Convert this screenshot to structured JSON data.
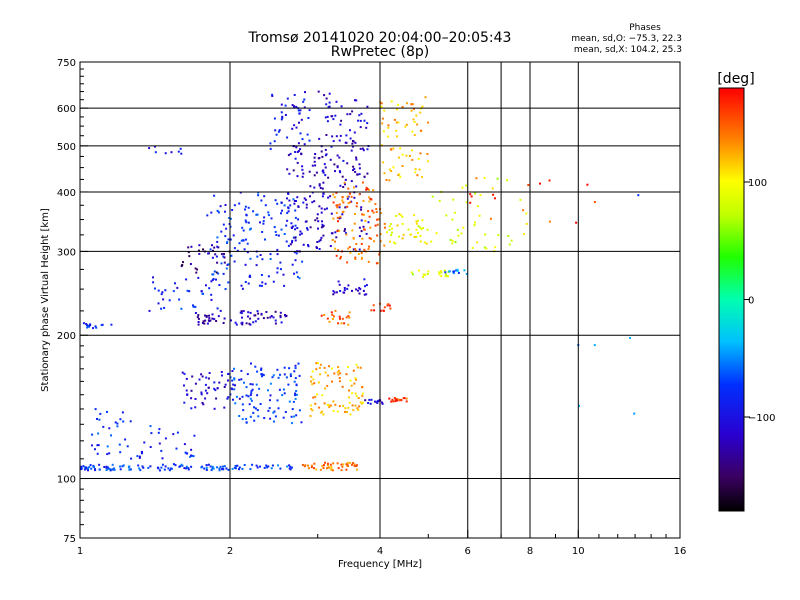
{
  "chart_data": {
    "type": "scatter",
    "title": "Tromsø 20141020 20:04:00–20:05:43",
    "subtitle": "RwPretec (8p)",
    "xlabel": "Frequency [MHz]",
    "ylabel": "Stationary phase Virtual Height [km]",
    "xscale": "log",
    "yscale": "log",
    "xlim": [
      1,
      16
    ],
    "ylim": [
      75,
      750
    ],
    "x_ticks": [
      1,
      2,
      4,
      6,
      8,
      10,
      16
    ],
    "x_tick_labels": [
      "1",
      "2",
      "4",
      "6",
      "8",
      "10",
      "16"
    ],
    "x_grid": [
      2,
      4,
      6,
      7,
      8,
      10
    ],
    "y_ticks": [
      75,
      100,
      200,
      300,
      400,
      500,
      600,
      750
    ],
    "y_tick_labels": [
      "75",
      "100",
      "200",
      "300",
      "400",
      "500",
      "600",
      "750"
    ],
    "y_grid": [
      100,
      200,
      300,
      400,
      500,
      600
    ],
    "grid": true,
    "stats_header": "Phases",
    "stats": [
      "mean, sd,O: −75.3, 22.3",
      "mean, sd,X: 104.2, 25.3"
    ],
    "colorbar": {
      "label": "[deg]",
      "range": [
        -180,
        180
      ],
      "ticks": [
        100,
        0,
        -100
      ],
      "tick_labels": [
        "100",
        "0",
        "−100"
      ],
      "colormap": "rainbow"
    },
    "clusters": [
      {
        "x": [
          1.0,
          1.18
        ],
        "y": [
          104,
          107
        ],
        "phase": -75,
        "n": 35
      },
      {
        "x": [
          1.15,
          2.7
        ],
        "y": [
          104,
          107
        ],
        "phase": -70,
        "n": 90
      },
      {
        "x": [
          2.8,
          3.6
        ],
        "y": [
          104,
          108
        ],
        "phase": 140,
        "n": 45
      },
      {
        "x": [
          1.05,
          1.3
        ],
        "y": [
          110,
          140
        ],
        "phase": -80,
        "n": 30
      },
      {
        "x": [
          1.3,
          1.7
        ],
        "y": [
          105,
          130
        ],
        "phase": -85,
        "n": 35
      },
      {
        "x": [
          1.6,
          2.1
        ],
        "y": [
          140,
          170
        ],
        "phase": -110,
        "n": 55
      },
      {
        "x": [
          2.0,
          2.8
        ],
        "y": [
          130,
          175
        ],
        "phase": -75,
        "n": 110
      },
      {
        "x": [
          2.9,
          3.7
        ],
        "y": [
          135,
          175
        ],
        "phase": 120,
        "n": 90
      },
      {
        "x": [
          3.7,
          4.1
        ],
        "y": [
          143,
          147
        ],
        "phase": -110,
        "n": 15
      },
      {
        "x": [
          4.15,
          4.6
        ],
        "y": [
          145,
          148
        ],
        "phase": 160,
        "n": 18
      },
      {
        "x": [
          1.0,
          1.18
        ],
        "y": [
          207,
          212
        ],
        "phase": -80,
        "n": 15
      },
      {
        "x": [
          1.35,
          1.9
        ],
        "y": [
          225,
          265
        ],
        "phase": -85,
        "n": 35
      },
      {
        "x": [
          1.7,
          2.6
        ],
        "y": [
          210,
          225
        ],
        "phase": -120,
        "n": 70
      },
      {
        "x": [
          1.6,
          2.0
        ],
        "y": [
          270,
          310
        ],
        "phase": -140,
        "n": 30
      },
      {
        "x": [
          1.8,
          2.8
        ],
        "y": [
          250,
          400
        ],
        "phase": -80,
        "n": 160
      },
      {
        "x": [
          2.6,
          3.1
        ],
        "y": [
          300,
          500
        ],
        "phase": -115,
        "n": 90
      },
      {
        "x": [
          2.4,
          2.9
        ],
        "y": [
          480,
          650
        ],
        "phase": -95,
        "n": 50
      },
      {
        "x": [
          3.0,
          3.8
        ],
        "y": [
          300,
          650
        ],
        "phase": -115,
        "n": 150
      },
      {
        "x": [
          3.2,
          4.1
        ],
        "y": [
          280,
          420
        ],
        "phase": 145,
        "n": 110
      },
      {
        "x": [
          3.0,
          3.5
        ],
        "y": [
          210,
          225
        ],
        "phase": 145,
        "n": 20
      },
      {
        "x": [
          3.2,
          3.8
        ],
        "y": [
          240,
          265
        ],
        "phase": -110,
        "n": 25
      },
      {
        "x": [
          3.8,
          4.2
        ],
        "y": [
          225,
          235
        ],
        "phase": 165,
        "n": 12
      },
      {
        "x": [
          4.1,
          5.0
        ],
        "y": [
          310,
          360
        ],
        "phase": 95,
        "n": 40
      },
      {
        "x": [
          4.0,
          5.0
        ],
        "y": [
          420,
          640
        ],
        "phase": 120,
        "n": 70
      },
      {
        "x": [
          4.6,
          5.5
        ],
        "y": [
          265,
          275
        ],
        "phase": 80,
        "n": 20
      },
      {
        "x": [
          5.4,
          6.0
        ],
        "y": [
          268,
          276
        ],
        "phase": -55,
        "n": 12
      },
      {
        "x": [
          5.0,
          8.0
        ],
        "y": [
          300,
          440
        ],
        "phase": 85,
        "n": 45
      },
      {
        "x": [
          6.0,
          11.0
        ],
        "y": [
          340,
          430
        ],
        "phase": 160,
        "n": 15
      },
      {
        "x": [
          1.3,
          1.6
        ],
        "y": [
          480,
          500
        ],
        "phase": -100,
        "n": 8
      },
      {
        "x": [
          10.0,
          13.5
        ],
        "y": [
          130,
          430
        ],
        "phase": -60,
        "n": 6
      }
    ]
  }
}
